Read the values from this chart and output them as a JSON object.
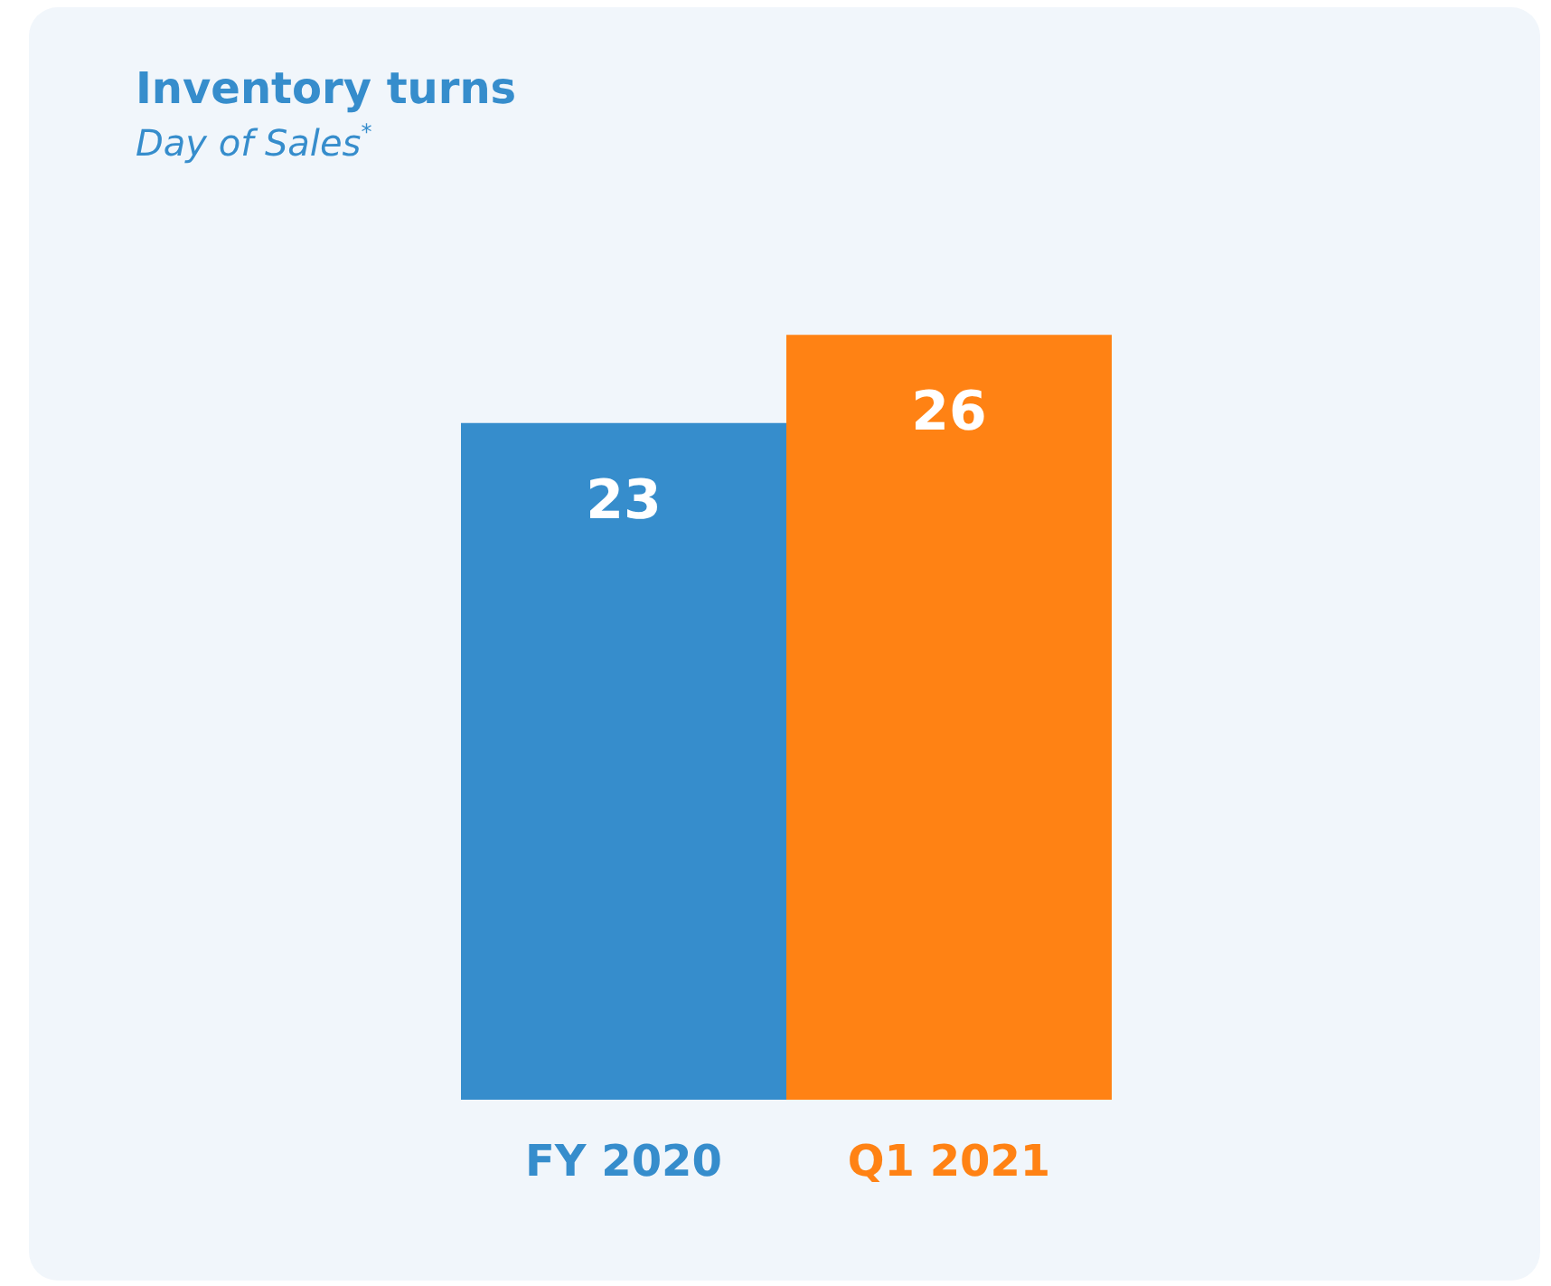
{
  "chart_data": {
    "type": "bar",
    "title": "Inventory turns",
    "subtitle": "Day of Sales$^{*}$",
    "categories": [
      "FY 2020",
      "Q1 2021"
    ],
    "values": [
      23,
      26
    ],
    "colors": [
      "#368dcc",
      "#ff8214"
    ],
    "data_labels": true
  }
}
